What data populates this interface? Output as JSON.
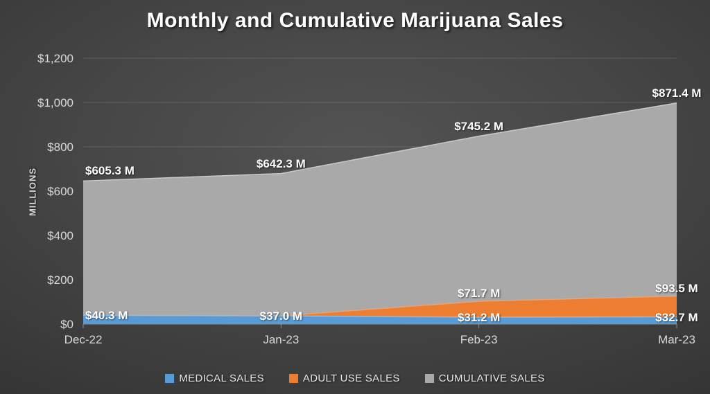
{
  "chart_data": {
    "type": "area",
    "stacked": true,
    "title": "Monthly and Cumulative Marijuana Sales",
    "xlabel": "",
    "ylabel": "MILLIONS",
    "categories": [
      "Dec-22",
      "Jan-23",
      "Feb-23",
      "Mar-23"
    ],
    "ylim": [
      0,
      1200
    ],
    "grid": true,
    "legend_position": "bottom",
    "y_ticks": {
      "values": [
        0,
        200,
        400,
        600,
        800,
        1000,
        1200
      ],
      "labels": [
        "$0",
        "$200",
        "$400",
        "$600",
        "$800",
        "$1,000",
        "$1,200"
      ]
    },
    "series": [
      {
        "name": "MEDICAL SALES",
        "color": "#5B9BD5",
        "edge_color": "#8FBCE3",
        "values": [
          40.3,
          37.0,
          31.2,
          32.7
        ],
        "labels": [
          "$40.3 M",
          "$37.0 M",
          "$31.2 M",
          "$32.7 M"
        ]
      },
      {
        "name": "ADULT USE SALES",
        "color": "#ED7D31",
        "edge_color": "#F2A069",
        "values": [
          0,
          0,
          71.7,
          93.5
        ],
        "labels": [
          "",
          "",
          "$71.7 M",
          "$93.5 M"
        ]
      },
      {
        "name": "CUMULATIVE SALES",
        "color": "#A9A9A9",
        "edge_color": "#C9C9C9",
        "values": [
          605.3,
          642.3,
          745.2,
          871.4
        ],
        "labels": [
          "$605.3 M",
          "$642.3 M",
          "$745.2 M",
          "$871.4 M"
        ]
      }
    ],
    "colors": {
      "background_center": "#4f4f4f",
      "background_edge": "#232323",
      "text": "#d9d9d9",
      "data_label": "#ffffff",
      "gridline": "rgba(255,255,255,0.14)",
      "axis_line": "rgba(255,255,255,0.40)"
    }
  }
}
